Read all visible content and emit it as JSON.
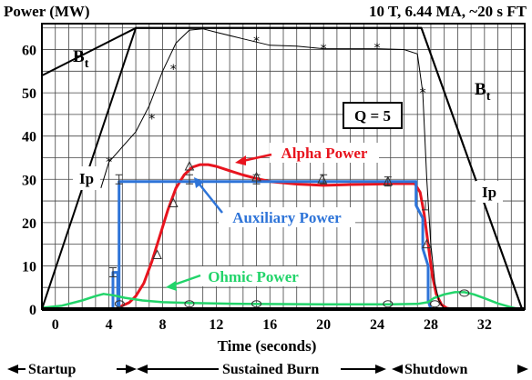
{
  "chart_data": {
    "type": "line",
    "title_left": "Power (MW)",
    "title_right": "10 T, 6.44 MA, ~20 s FT",
    "xlabel": "Time (seconds)",
    "xlim": [
      -1,
      35
    ],
    "ylim": [
      0,
      66
    ],
    "x_ticks": [
      0,
      4,
      8,
      12,
      16,
      20,
      24,
      28,
      32
    ],
    "y_ticks": [
      0,
      10,
      20,
      30,
      40,
      50,
      60
    ],
    "grid": true,
    "phases": [
      {
        "label": "Startup",
        "from": -1,
        "to": 6.7
      },
      {
        "label": "Sustained Burn",
        "from": 6.7,
        "to": 28.5
      },
      {
        "label": "Shutdown",
        "from": 28.5,
        "to": 34.8
      }
    ],
    "annotations": {
      "bt_left": "B",
      "bt_right": "B",
      "bt_sub": "t",
      "ip_left": "Ip",
      "ip_right": "Ip",
      "q_box": "Q = 5"
    },
    "series": [
      {
        "name": "Alpha Power",
        "color": "#e8141e",
        "x": [
          4.8,
          5.5,
          6.0,
          6.6,
          7.2,
          7.8,
          8.4,
          9.0,
          9.6,
          10.2,
          10.8,
          11.4,
          12.0,
          13.0,
          14.0,
          15.0,
          16.0,
          18.0,
          20.0,
          22.0,
          24.0,
          25.0,
          26.0,
          26.8,
          27.2,
          27.5,
          27.8,
          28.1,
          28.4,
          28.8,
          29.2,
          29.6
        ],
        "y": [
          0.5,
          1.5,
          3.0,
          6.0,
          11.0,
          17.0,
          23.0,
          28.0,
          31.0,
          32.8,
          33.4,
          33.4,
          33.0,
          32.0,
          31.0,
          30.2,
          29.5,
          28.9,
          28.6,
          28.8,
          28.9,
          29.0,
          29.0,
          29.0,
          27.0,
          22.0,
          15.0,
          8.0,
          3.5,
          1.0,
          0.2,
          0.0
        ]
      },
      {
        "name": "Auxiliary Power",
        "color": "#2e74d8",
        "x": [
          4.3,
          4.3,
          4.65,
          4.65,
          4.75,
          4.75,
          26.9,
          26.9,
          27.4,
          27.4,
          27.8,
          27.8,
          28.0
        ],
        "y": [
          0.0,
          8.5,
          8.5,
          0.0,
          0.0,
          29.5,
          29.5,
          24.0,
          21.0,
          14.0,
          10.0,
          2.0,
          0.0
        ]
      },
      {
        "name": "Ohmic Power",
        "color": "#22d46a",
        "x": [
          -1.0,
          0.5,
          2.0,
          3.0,
          3.6,
          4.3,
          5.2,
          6.5,
          8.0,
          10.0,
          14.0,
          20.0,
          25.0,
          27.0,
          27.8,
          28.2,
          29.0,
          29.8,
          30.5,
          31.2,
          32.0,
          33.0,
          34.0,
          34.6
        ],
        "y": [
          0.3,
          0.8,
          2.0,
          3.0,
          3.5,
          3.2,
          2.6,
          2.0,
          1.6,
          1.4,
          1.2,
          1.1,
          1.1,
          1.2,
          1.6,
          2.5,
          3.4,
          3.9,
          3.9,
          3.4,
          2.5,
          1.3,
          0.4,
          0.0
        ]
      },
      {
        "name": "Bt",
        "color": "#000000",
        "x": [
          -1.0,
          6.0,
          27.3,
          34.8
        ],
        "y": [
          54.0,
          65.0,
          65.0,
          0.0
        ]
      },
      {
        "name": "Ip",
        "color": "#000000",
        "x": [
          -1.0,
          6.0,
          27.3,
          34.8
        ],
        "y": [
          0.0,
          65.0,
          65.0,
          0.0
        ]
      },
      {
        "name": "Density",
        "color": "#000000",
        "x": [
          3.4,
          4.0,
          5.0,
          6.0,
          7.0,
          8.0,
          9.0,
          10.0,
          11.0,
          12.0,
          14.0,
          16.0,
          18.0,
          20.0,
          22.0,
          24.0,
          26.0,
          27.0,
          27.4,
          27.7,
          28.0,
          28.3,
          28.6,
          29.0
        ],
        "y": [
          28.0,
          34.0,
          37.5,
          41.0,
          47.0,
          55.0,
          61.5,
          64.5,
          64.8,
          64.0,
          62.5,
          61.0,
          60.8,
          60.2,
          60.2,
          60.2,
          60.0,
          59.0,
          50.0,
          30.0,
          15.0,
          6.0,
          2.0,
          0.0
        ]
      }
    ],
    "markers": [
      {
        "series": "Density",
        "symbol": "*",
        "x": [
          4.0,
          7.2,
          8.8,
          15.0,
          20.0,
          24.0,
          27.4
        ],
        "y": [
          34.0,
          44.0,
          55.5,
          62.0,
          60.2,
          60.4,
          50.0
        ]
      },
      {
        "series": "Alpha Power",
        "symbol": "^",
        "x": [
          7.6,
          8.8,
          10.0,
          15.0,
          19.9,
          24.8,
          27.7
        ],
        "y": [
          12.5,
          24.5,
          33.0,
          30.5,
          30.0,
          29.5,
          15.0
        ]
      },
      {
        "series": "Auxiliary Power",
        "symbol": "I",
        "x": [
          4.3,
          4.75,
          10.0,
          15.0,
          20.0,
          24.8,
          27.6
        ],
        "y": [
          8.5,
          30.0,
          30.0,
          30.0,
          30.0,
          29.5,
          24.0
        ]
      },
      {
        "series": "Ohmic Power",
        "symbol": "o",
        "x": [
          4.8,
          10.0,
          15.0,
          24.8,
          28.3,
          30.5
        ],
        "y": [
          1.2,
          1.2,
          1.2,
          1.2,
          1.2,
          3.7
        ]
      }
    ]
  }
}
